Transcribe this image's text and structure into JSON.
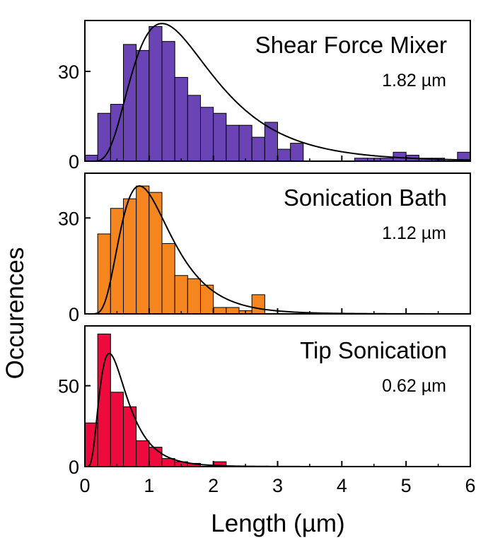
{
  "chart_data": {
    "type": "bar",
    "xlabel": "Length (µm)",
    "ylabel": "Occurences",
    "xlim": [
      0,
      6
    ],
    "x_ticks": [
      "0",
      "1",
      "2",
      "3",
      "4",
      "5",
      "6"
    ],
    "bin_width": 0.2,
    "panels": [
      {
        "name": "Shear Force Mixer",
        "mean_label": "1.82 µm",
        "color": "#6a44b5",
        "ylim": [
          0,
          47
        ],
        "y_ticks": [
          {
            "value": 0,
            "label": "0"
          },
          {
            "value": 30,
            "label": "30"
          }
        ],
        "bins_start": [
          0.0,
          0.2,
          0.4,
          0.6,
          0.8,
          1.0,
          1.2,
          1.4,
          1.6,
          1.8,
          2.0,
          2.2,
          2.4,
          2.6,
          2.8,
          3.0,
          3.2,
          3.4,
          3.6,
          3.8,
          4.0,
          4.2,
          4.4,
          4.6,
          4.8,
          5.0,
          5.2,
          5.4,
          5.6,
          5.8
        ],
        "values": [
          2,
          16,
          19,
          39,
          37,
          45,
          40,
          28,
          22,
          18,
          16,
          12,
          12,
          8,
          13,
          4,
          6,
          0,
          0,
          0,
          0,
          1,
          1,
          1,
          3,
          2,
          1,
          1,
          0,
          3
        ],
        "fit": {
          "peak_x": 1.2,
          "peak_y": 46,
          "sigma": 0.52
        }
      },
      {
        "name": "Sonication Bath",
        "mean_label": "1.12 µm",
        "color": "#f5861f",
        "ylim": [
          0,
          44
        ],
        "y_ticks": [
          {
            "value": 0,
            "label": "0"
          },
          {
            "value": 30,
            "label": "30"
          }
        ],
        "bins_start": [
          0.2,
          0.4,
          0.6,
          0.8,
          1.0,
          1.2,
          1.4,
          1.6,
          1.8,
          2.0,
          2.2,
          2.4,
          2.6,
          2.8
        ],
        "values": [
          25,
          33,
          36,
          40,
          38,
          22,
          12,
          11,
          9,
          2,
          2,
          1,
          6,
          0
        ],
        "fit": {
          "peak_x": 0.85,
          "peak_y": 40,
          "sigma": 0.46
        }
      },
      {
        "name": "Tip Sonication",
        "mean_label": "0.62 µm",
        "color": "#ee0a3c",
        "ylim": [
          0,
          87
        ],
        "y_ticks": [
          {
            "value": 0,
            "label": "0"
          },
          {
            "value": 50,
            "label": "50"
          }
        ],
        "bins_start": [
          0.0,
          0.2,
          0.4,
          0.6,
          0.8,
          1.0,
          1.2,
          1.4,
          1.6,
          1.8,
          2.0
        ],
        "values": [
          27,
          82,
          46,
          37,
          16,
          12,
          5,
          3,
          2,
          0,
          3
        ],
        "fit": {
          "peak_x": 0.38,
          "peak_y": 70,
          "sigma": 0.55
        }
      }
    ],
    "grid": false,
    "legend": "none"
  }
}
